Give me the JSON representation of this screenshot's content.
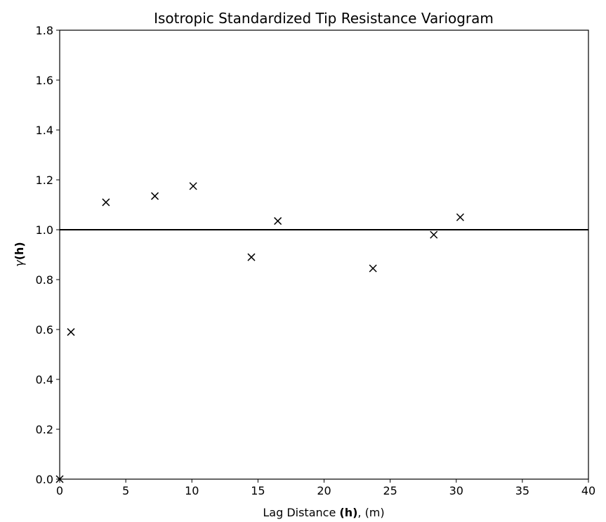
{
  "chart_data": {
    "type": "scatter",
    "title": "Isotropic Standardized Tip Resistance Variogram",
    "xlabel_parts": [
      "Lag Distance ",
      "(h)",
      ", (m)"
    ],
    "ylabel_parts": [
      "γ",
      "(h)"
    ],
    "xlim": [
      0,
      40
    ],
    "ylim": [
      0,
      1.8
    ],
    "xticks": [
      0,
      5,
      10,
      15,
      20,
      25,
      30,
      35,
      40
    ],
    "xtick_labels": [
      "0",
      "5",
      "10",
      "15",
      "20",
      "25",
      "30",
      "35",
      "40"
    ],
    "yticks": [
      0,
      0.2,
      0.4,
      0.6,
      0.8,
      1.0,
      1.2,
      1.4,
      1.6,
      1.8
    ],
    "ytick_labels": [
      "0.0",
      "0.2",
      "0.4",
      "0.6",
      "0.8",
      "1.0",
      "1.2",
      "1.4",
      "1.6",
      "1.8"
    ],
    "grid": false,
    "sill": 1.0,
    "marker": "x",
    "color": "#000000",
    "points": [
      {
        "x": 0.0,
        "y": 0.0
      },
      {
        "x": 0.85,
        "y": 0.59
      },
      {
        "x": 3.5,
        "y": 1.11
      },
      {
        "x": 7.2,
        "y": 1.135
      },
      {
        "x": 10.1,
        "y": 1.175
      },
      {
        "x": 14.5,
        "y": 0.89
      },
      {
        "x": 16.5,
        "y": 1.035
      },
      {
        "x": 23.7,
        "y": 0.845
      },
      {
        "x": 28.3,
        "y": 0.98
      },
      {
        "x": 30.3,
        "y": 1.05
      }
    ]
  }
}
